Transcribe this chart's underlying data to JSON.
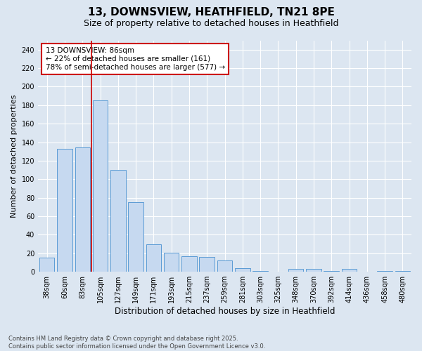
{
  "title1": "13, DOWNSVIEW, HEATHFIELD, TN21 8PE",
  "title2": "Size of property relative to detached houses in Heathfield",
  "xlabel": "Distribution of detached houses by size in Heathfield",
  "ylabel": "Number of detached properties",
  "categories": [
    "38sqm",
    "60sqm",
    "83sqm",
    "105sqm",
    "127sqm",
    "149sqm",
    "171sqm",
    "193sqm",
    "215sqm",
    "237sqm",
    "259sqm",
    "281sqm",
    "303sqm",
    "325sqm",
    "348sqm",
    "370sqm",
    "392sqm",
    "414sqm",
    "436sqm",
    "458sqm",
    "480sqm"
  ],
  "values": [
    15,
    133,
    134,
    185,
    110,
    75,
    30,
    21,
    17,
    16,
    12,
    4,
    1,
    0,
    3,
    3,
    1,
    3,
    0,
    1,
    1
  ],
  "bar_color": "#c6d9f0",
  "bar_edge_color": "#5b9bd5",
  "redline_x": 2.5,
  "annotation_title": "13 DOWNSVIEW: 86sqm",
  "annotation_line1": "← 22% of detached houses are smaller (161)",
  "annotation_line2": "78% of semi-detached houses are larger (577) →",
  "annotation_box_color": "#ffffff",
  "annotation_box_edge": "#cc0000",
  "redline_color": "#cc0000",
  "bg_color": "#dce6f1",
  "plot_bg_color": "#dce6f1",
  "grid_color": "#ffffff",
  "ylim": [
    0,
    250
  ],
  "yticks": [
    0,
    20,
    40,
    60,
    80,
    100,
    120,
    140,
    160,
    180,
    200,
    220,
    240
  ],
  "footer": "Contains HM Land Registry data © Crown copyright and database right 2025.\nContains public sector information licensed under the Open Government Licence v3.0.",
  "title1_fontsize": 11,
  "title2_fontsize": 9,
  "xlabel_fontsize": 8.5,
  "ylabel_fontsize": 8,
  "tick_fontsize": 7,
  "annotation_fontsize": 7.5,
  "footer_fontsize": 6
}
